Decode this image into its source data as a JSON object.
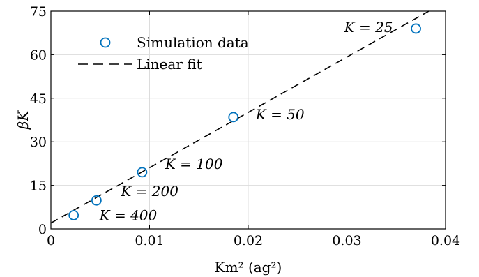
{
  "chart_data": {
    "type": "scatter",
    "xlabel": "Km² (ag²)",
    "ylabel": "βK",
    "xlim": [
      0,
      0.04
    ],
    "ylim": [
      0,
      75
    ],
    "x_ticks": [
      0,
      0.01,
      0.02,
      0.03,
      0.04
    ],
    "x_tick_labels": [
      "0",
      "0.01",
      "0.02",
      "0.03",
      "0.04"
    ],
    "y_ticks": [
      0,
      15,
      30,
      45,
      60,
      75
    ],
    "y_tick_labels": [
      "0",
      "15",
      "30",
      "45",
      "60",
      "75"
    ],
    "grid": true,
    "legend_position": "top-left",
    "series": [
      {
        "name": "Simulation data",
        "kind": "markers",
        "color": "#0072BD",
        "x": [
          0.00231,
          0.00462,
          0.00925,
          0.0185,
          0.037
        ],
        "y": [
          4.7,
          9.8,
          19.5,
          38.5,
          69
        ],
        "labels": [
          "K = 400",
          "K = 200",
          "K = 100",
          "K = 50",
          "K = 25"
        ]
      },
      {
        "name": "Linear fit",
        "kind": "dashed-line",
        "color": "#000000",
        "x": [
          0,
          0.0383
        ],
        "y": [
          2.0,
          75
        ]
      }
    ]
  }
}
